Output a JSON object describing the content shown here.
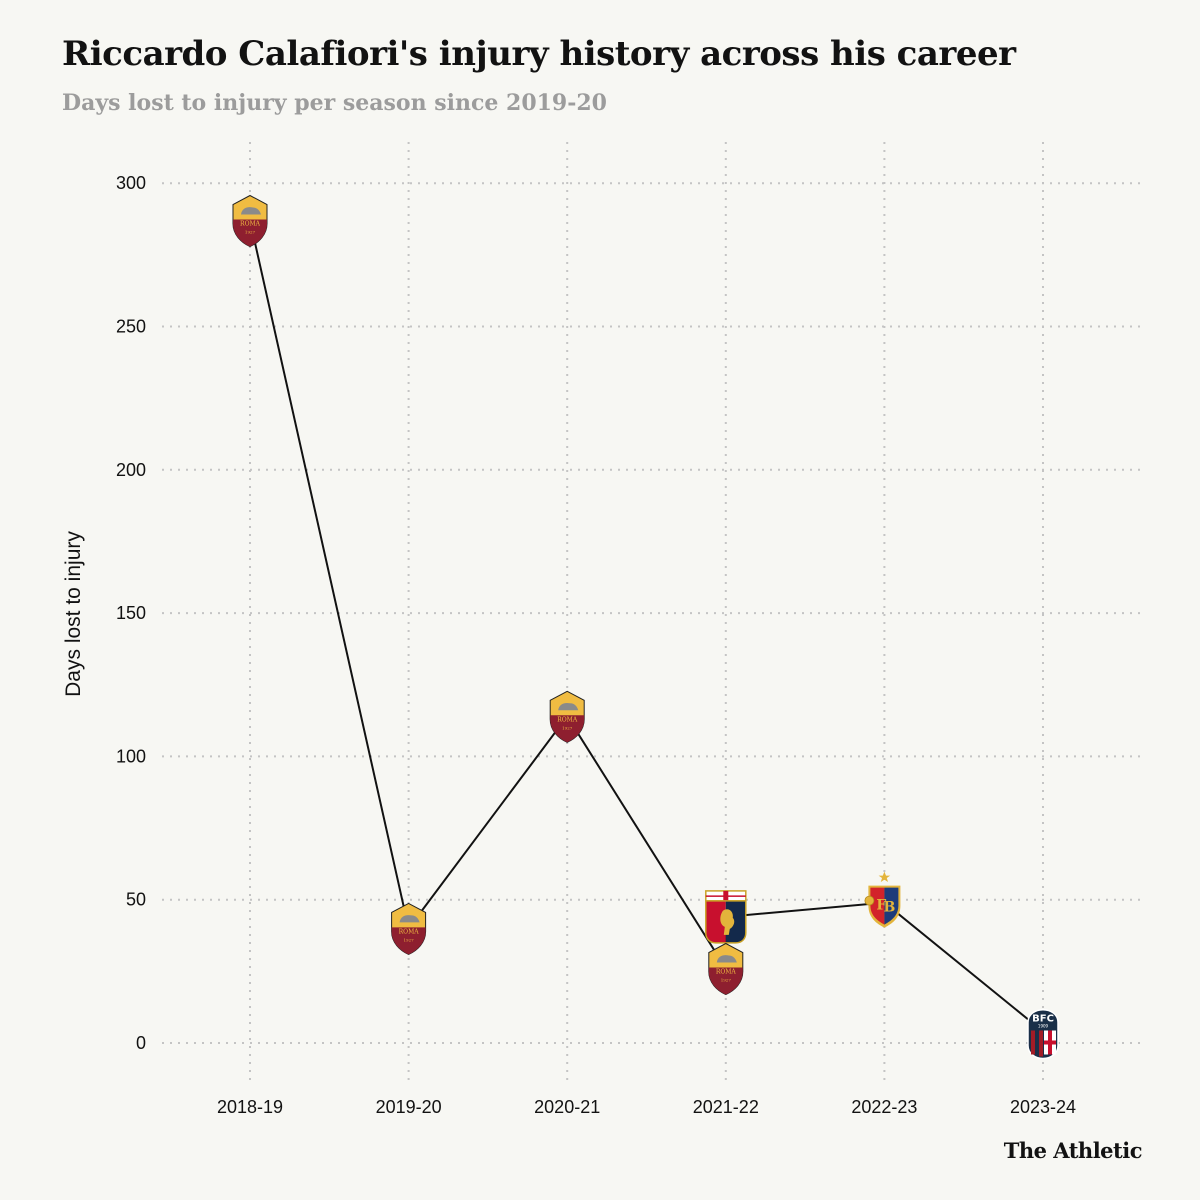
{
  "header": {
    "title": "Riccardo Calafiori's injury history across his career",
    "subtitle": "Days lost to injury per season since 2019-20"
  },
  "brand": "The Athletic",
  "colors": {
    "background": "#f7f7f3",
    "line": "#121212",
    "grid": "#c4c4c4",
    "roma_red": "#8e1f2f",
    "roma_gold": "#f0bc42",
    "genoa_red": "#c8102e",
    "genoa_navy": "#13294b",
    "basel_red": "#d2232a",
    "basel_blue": "#1d3b7a",
    "bologna_red": "#a21c26",
    "bologna_navy": "#1a2f48"
  },
  "chart_data": {
    "type": "line",
    "title": "Riccardo Calafiori's injury history across his career",
    "subtitle": "Days lost to injury per season since 2019-20",
    "xlabel": "",
    "ylabel": "Days lost to injury",
    "categories": [
      "2018-19",
      "2019-20",
      "2020-21",
      "2021-22",
      "2022-23",
      "2023-24"
    ],
    "ylim": [
      0,
      300
    ],
    "yticks": [
      "0",
      "50",
      "100",
      "150",
      "200",
      "250",
      "300"
    ],
    "grid": true,
    "points": [
      {
        "x": "2018-19",
        "y": 287,
        "club": "Roma",
        "icon": "roma-crest-icon"
      },
      {
        "x": "2019-20",
        "y": 40,
        "club": "Roma",
        "icon": "roma-crest-icon"
      },
      {
        "x": "2020-21",
        "y": 114,
        "club": "Roma",
        "icon": "roma-crest-icon"
      },
      {
        "x": "2021-22",
        "y": 44,
        "club": "Genoa",
        "icon": "genoa-crest-icon"
      },
      {
        "x": "2021-22",
        "y": 26,
        "club": "Roma",
        "icon": "roma-crest-icon"
      },
      {
        "x": "2022-23",
        "y": 49,
        "club": "Basel",
        "icon": "basel-crest-icon"
      },
      {
        "x": "2023-24",
        "y": 4,
        "club": "Bologna",
        "icon": "bologna-crest-icon"
      }
    ],
    "line_order": [
      0,
      1,
      2,
      4,
      3,
      5,
      6
    ]
  }
}
